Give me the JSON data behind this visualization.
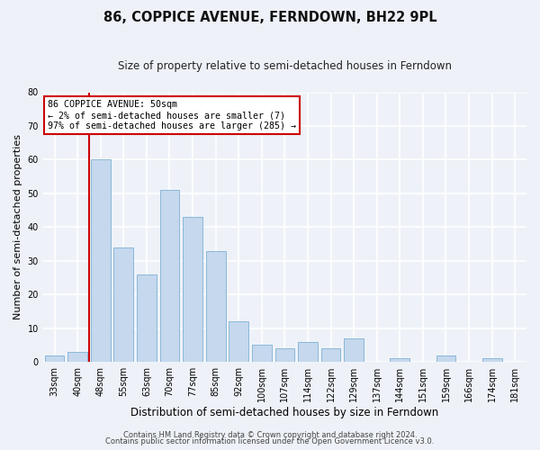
{
  "title": "86, COPPICE AVENUE, FERNDOWN, BH22 9PL",
  "subtitle": "Size of property relative to semi-detached houses in Ferndown",
  "bar_labels": [
    "33sqm",
    "40sqm",
    "48sqm",
    "55sqm",
    "63sqm",
    "70sqm",
    "77sqm",
    "85sqm",
    "92sqm",
    "100sqm",
    "107sqm",
    "114sqm",
    "122sqm",
    "129sqm",
    "137sqm",
    "144sqm",
    "151sqm",
    "159sqm",
    "166sqm",
    "174sqm",
    "181sqm"
  ],
  "bar_values": [
    2,
    3,
    60,
    34,
    26,
    51,
    43,
    33,
    12,
    5,
    4,
    6,
    4,
    7,
    0,
    1,
    0,
    2,
    0,
    1,
    0
  ],
  "bar_color": "#c5d8ed",
  "bar_edge_color": "#8ab8d8",
  "ylim": [
    0,
    80
  ],
  "yticks": [
    0,
    10,
    20,
    30,
    40,
    50,
    60,
    70,
    80
  ],
  "ylabel": "Number of semi-detached properties",
  "xlabel": "Distribution of semi-detached houses by size in Ferndown",
  "property_line_x": 1.5,
  "property_line_color": "#cc0000",
  "annotation_title": "86 COPPICE AVENUE: 50sqm",
  "annotation_line1": "← 2% of semi-detached houses are smaller (7)",
  "annotation_line2": "97% of semi-detached houses are larger (285) →",
  "annotation_box_color": "#cc0000",
  "footer_line1": "Contains HM Land Registry data © Crown copyright and database right 2024.",
  "footer_line2": "Contains public sector information licensed under the Open Government Licence v3.0.",
  "bg_color": "#eef2f8",
  "grid_color": "#ffffff",
  "title_fontsize": 10.5,
  "subtitle_fontsize": 8.5,
  "axis_label_fontsize": 8,
  "tick_fontsize": 7,
  "footer_fontsize": 6
}
